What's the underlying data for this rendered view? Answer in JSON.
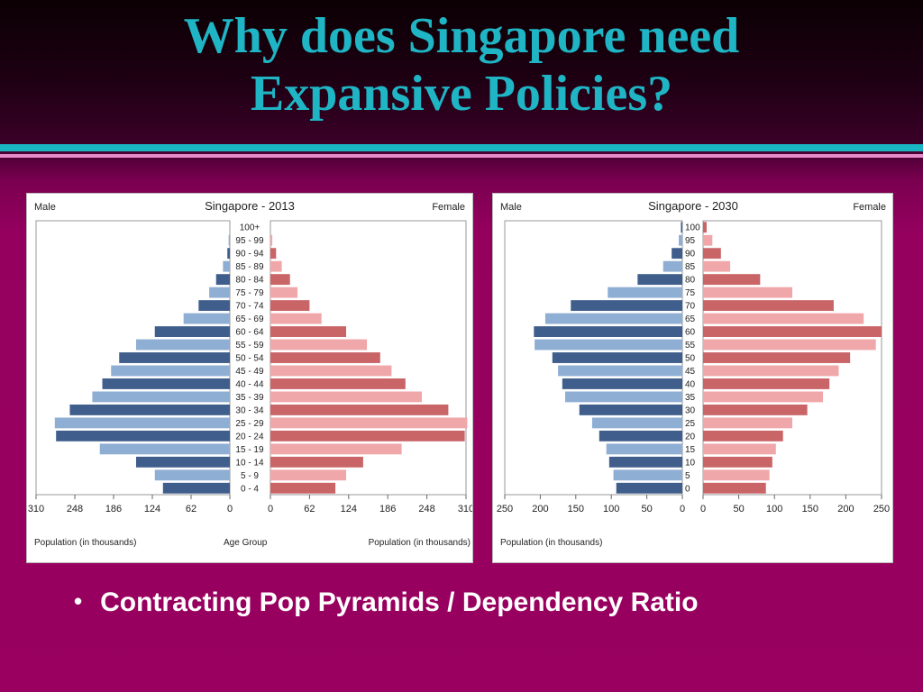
{
  "slide": {
    "title_line1": "Why does Singapore need",
    "title_line2": "Expansive Policies?",
    "bullet": "Contracting Pop Pyramids / Dependency Ratio",
    "colors": {
      "title": "#1fb5c4",
      "background": "#99005f",
      "male_dark": "#3f5e8c",
      "male_light": "#8faed4",
      "female_dark": "#c96467",
      "female_light": "#f0a7a9"
    }
  },
  "chart_data": [
    {
      "type": "bar",
      "title": "Singapore - 2013",
      "left_label": "Male",
      "right_label": "Female",
      "categories": [
        "100+",
        "95 - 99",
        "90 - 94",
        "85 - 89",
        "80 - 84",
        "75 - 79",
        "70 - 74",
        "65 - 69",
        "60 - 64",
        "55 - 59",
        "50 - 54",
        "45 - 49",
        "40 - 44",
        "35 - 39",
        "30 - 34",
        "25 - 29",
        "20 - 24",
        "15 - 19",
        "10 - 14",
        "5 - 9",
        "0 - 4"
      ],
      "series": [
        {
          "name": "Male",
          "values": [
            0,
            2,
            4,
            11,
            22,
            33,
            50,
            74,
            120,
            150,
            177,
            190,
            204,
            220,
            256,
            280,
            278,
            208,
            150,
            120,
            107
          ]
        },
        {
          "name": "Female",
          "values": [
            0,
            3,
            9,
            18,
            31,
            43,
            62,
            81,
            120,
            153,
            174,
            192,
            214,
            240,
            282,
            312,
            308,
            208,
            147,
            120,
            103
          ]
        }
      ],
      "left_ticks": [
        "310",
        "248",
        "186",
        "124",
        "62",
        "0"
      ],
      "right_ticks": [
        "0",
        "62",
        "124",
        "186",
        "248",
        "310"
      ],
      "xlim": [
        0,
        310
      ],
      "xlabel_left": "Population (in thousands)",
      "xlabel_center": "Age Group",
      "xlabel_right": "Population (in thousands)"
    },
    {
      "type": "bar",
      "title": "Singapore - 2030",
      "left_label": "Male",
      "right_label": "Female",
      "categories": [
        "100",
        "95",
        "90",
        "85",
        "80",
        "75",
        "70",
        "65",
        "60",
        "55",
        "50",
        "45",
        "40",
        "35",
        "30",
        "25",
        "20",
        "15",
        "10",
        "5",
        "0"
      ],
      "series": [
        {
          "name": "Male",
          "values": [
            2,
            5,
            15,
            27,
            63,
            105,
            157,
            193,
            209,
            208,
            183,
            175,
            169,
            165,
            145,
            127,
            117,
            107,
            103,
            97,
            93
          ]
        },
        {
          "name": "Female",
          "values": [
            5,
            13,
            25,
            38,
            80,
            125,
            183,
            225,
            250,
            242,
            206,
            190,
            177,
            168,
            146,
            125,
            112,
            102,
            97,
            93,
            88
          ]
        }
      ],
      "left_ticks": [
        "250",
        "200",
        "150",
        "100",
        "50",
        "0"
      ],
      "right_ticks": [
        "0",
        "50",
        "100",
        "150",
        "200",
        "250"
      ],
      "xlim": [
        0,
        250
      ],
      "xlabel_left": "Population (in thousands)"
    }
  ]
}
